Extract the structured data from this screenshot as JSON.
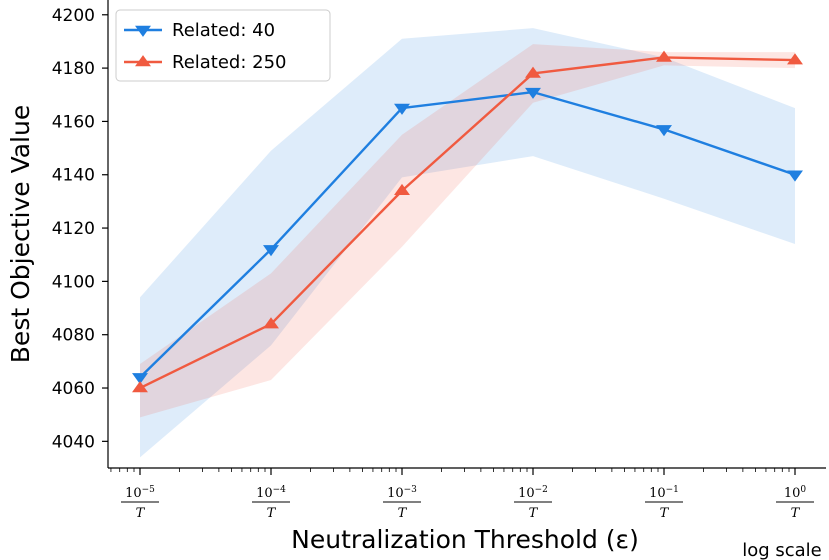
{
  "chart_data": {
    "type": "line",
    "xlabel": "Neutralization Threshold (ε)",
    "ylabel": "Best Objective Value",
    "x_scale": "log",
    "x_scale_note": "log scale",
    "x_ticks": [
      {
        "num": "10",
        "exp": "−5",
        "den": "T"
      },
      {
        "num": "10",
        "exp": "−4",
        "den": "T"
      },
      {
        "num": "10",
        "exp": "−3",
        "den": "T"
      },
      {
        "num": "10",
        "exp": "−2",
        "den": "T"
      },
      {
        "num": "10",
        "exp": "−1",
        "den": "T"
      },
      {
        "num": "10",
        "exp": "0",
        "den": "T"
      }
    ],
    "y_ticks": [
      "4040",
      "4060",
      "4080",
      "4100",
      "4120",
      "4140",
      "4160",
      "4180",
      "4200"
    ],
    "ylim": [
      4030,
      4201
    ],
    "legend_position": "top-left",
    "grid": false,
    "series": [
      {
        "name": "Related: 40",
        "color": "#1f7fe0",
        "marker": "triangle-down",
        "values": [
          4064,
          4112,
          4165,
          4171,
          4157,
          4140
        ],
        "upper": [
          4094,
          4149,
          4191,
          4195,
          4184,
          4165
        ],
        "lower": [
          4034,
          4076,
          4139,
          4147,
          4131,
          4114
        ]
      },
      {
        "name": "Related: 250",
        "color": "#f05a40",
        "marker": "triangle-up",
        "values": [
          4060,
          4084,
          4134,
          4178,
          4184,
          4183
        ],
        "upper": [
          4069,
          4103,
          4155,
          4189,
          4186,
          4186
        ],
        "lower": [
          4049,
          4063,
          4113,
          4167,
          4181,
          4180
        ]
      }
    ]
  }
}
